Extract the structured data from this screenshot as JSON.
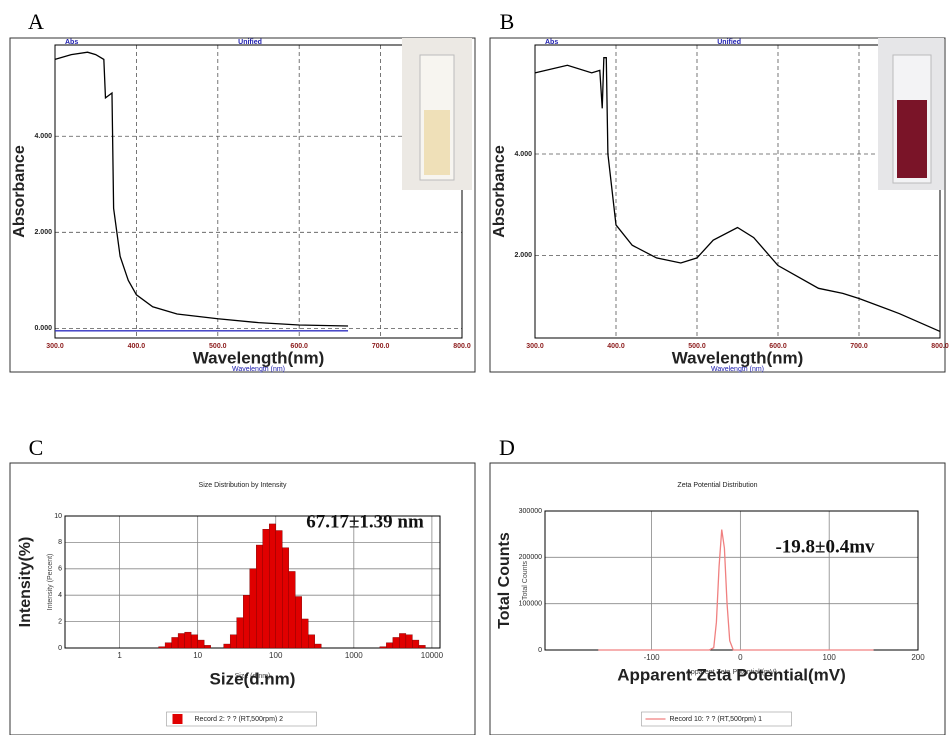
{
  "chart_data": [
    {
      "type": "line",
      "panel": "A",
      "header_left": "Abs",
      "header_right": "Unified",
      "xlabel": "Wavelength(nm)",
      "x_sublabel": "Wavelength (nm)",
      "ylabel": "Absorbance",
      "xlim": [
        300,
        800
      ],
      "ylim": [
        -0.2,
        5.9
      ],
      "xticks": [
        {
          "value": 300,
          "label": "300.0"
        },
        {
          "value": 400,
          "label": "400.0"
        },
        {
          "value": 500,
          "label": "500.0"
        },
        {
          "value": 600,
          "label": "600.0"
        },
        {
          "value": 700,
          "label": "700.0"
        },
        {
          "value": 800,
          "label": "800.0"
        }
      ],
      "yticks": [
        {
          "value": 0,
          "label": "0.000"
        },
        {
          "value": 2,
          "label": "2.000"
        },
        {
          "value": 4,
          "label": "4.000"
        }
      ],
      "grid": "dashed",
      "series": [
        {
          "color": "#000000",
          "x": [
            300,
            320,
            340,
            350,
            360,
            362,
            370,
            372,
            380,
            390,
            400,
            420,
            450,
            500,
            550,
            600,
            660
          ],
          "values": [
            5.6,
            5.7,
            5.75,
            5.7,
            5.6,
            4.8,
            4.9,
            2.5,
            1.5,
            1.0,
            0.7,
            0.45,
            0.3,
            0.2,
            0.12,
            0.07,
            0.05
          ]
        },
        {
          "color": "#3030c0",
          "x": [
            300,
            660
          ],
          "values": [
            -0.05,
            -0.05
          ]
        }
      ]
    },
    {
      "type": "line",
      "panel": "B",
      "header_left": "Abs",
      "header_right": "Unified",
      "xlabel": "Wavelength(nm)",
      "x_sublabel": "Wavelength (nm)",
      "ylabel": "Absorbance",
      "xlim": [
        300,
        800
      ],
      "ylim": [
        0.37,
        6.15
      ],
      "xticks": [
        {
          "value": 300,
          "label": "300.0"
        },
        {
          "value": 400,
          "label": "400.0"
        },
        {
          "value": 500,
          "label": "500.0"
        },
        {
          "value": 600,
          "label": "600.0"
        },
        {
          "value": 700,
          "label": "700.0"
        },
        {
          "value": 800,
          "label": "800.0"
        }
      ],
      "yticks": [
        {
          "value": 2,
          "label": "2.000"
        },
        {
          "value": 4,
          "label": "4.000"
        }
      ],
      "grid": "dashed",
      "series": [
        {
          "color": "#000000",
          "x": [
            300,
            340,
            370,
            380,
            383,
            385,
            388,
            390,
            400,
            420,
            450,
            480,
            500,
            520,
            550,
            570,
            600,
            650,
            680,
            700,
            750,
            800
          ],
          "values": [
            5.6,
            5.75,
            5.6,
            5.65,
            4.9,
            5.9,
            5.9,
            4.0,
            2.6,
            2.2,
            1.95,
            1.85,
            1.95,
            2.3,
            2.55,
            2.35,
            1.8,
            1.35,
            1.25,
            1.15,
            0.85,
            0.5
          ]
        }
      ]
    },
    {
      "type": "histogram",
      "panel": "C",
      "title": "Size Distribution by Intensity",
      "xlabel": "Size(d.nm)",
      "x_sublabel": "Size (d.nm)",
      "ylabel": "Intensity(%)",
      "y_sublabel": "Intensity (Percent)",
      "annotation": "67.17±1.39 nm",
      "xscale": "log",
      "xlim": [
        0.2,
        12700
      ],
      "ylim": [
        0,
        10
      ],
      "xticks": [
        1,
        10,
        100,
        1000,
        10000
      ],
      "yticks": [
        0,
        2,
        4,
        6,
        8,
        10
      ],
      "grid": "solid",
      "legend": "bottom",
      "series": [
        {
          "name": "Record 2: ? ? (RT,500rpm) 2",
          "color": "#e00000",
          "bins": [
            3.162,
            3.83,
            4.64,
            5.62,
            6.81,
            8.25,
            10,
            12.12,
            14.68,
            17.78,
            21.54,
            26.1,
            31.62,
            38.31,
            46.42,
            56.23,
            68.13,
            82.54,
            100,
            121.2,
            146.8,
            177.8,
            215.4,
            261,
            316.2,
            383.1,
            464.2,
            562.3,
            681.3,
            825.4,
            1000,
            1212,
            1468,
            1778,
            2154,
            2610,
            3162,
            3831,
            4642,
            5623,
            6813,
            8254
          ],
          "values": [
            0.1,
            0.4,
            0.8,
            1.1,
            1.2,
            1.0,
            0.6,
            0.2,
            0,
            0,
            0.3,
            1.0,
            2.3,
            4.0,
            6.0,
            7.8,
            9.0,
            9.4,
            8.9,
            7.6,
            5.8,
            3.9,
            2.2,
            1.0,
            0.3,
            0,
            0,
            0,
            0,
            0,
            0,
            0,
            0,
            0,
            0.1,
            0.4,
            0.8,
            1.1,
            1.0,
            0.6,
            0.2
          ]
        }
      ]
    },
    {
      "type": "line",
      "panel": "D",
      "title": "Zeta Potential Distribution",
      "xlabel": "Apparent Zeta Potential(mV)",
      "x_sublabel": "Apparent Zeta Potential (mV)",
      "ylabel": "Total Counts",
      "y_sublabel": "Total Counts",
      "annotation": "-19.8±0.4mv",
      "xlim": [
        -220,
        200
      ],
      "ylim": [
        0,
        300000
      ],
      "xticks": [
        -100,
        0,
        100,
        200
      ],
      "yticks": [
        0,
        100000,
        200000,
        300000
      ],
      "grid": "solid",
      "legend": "bottom",
      "series": [
        {
          "name": "Record 10: ? ? (RT,500rpm) 1",
          "color": "#f08080",
          "x": [
            -160,
            -35,
            -30,
            -27,
            -24,
            -21,
            -18,
            -15,
            -12,
            -8,
            150
          ],
          "values": [
            0,
            0,
            5000,
            60000,
            180000,
            260000,
            220000,
            100000,
            20000,
            0,
            0
          ]
        }
      ]
    }
  ]
}
